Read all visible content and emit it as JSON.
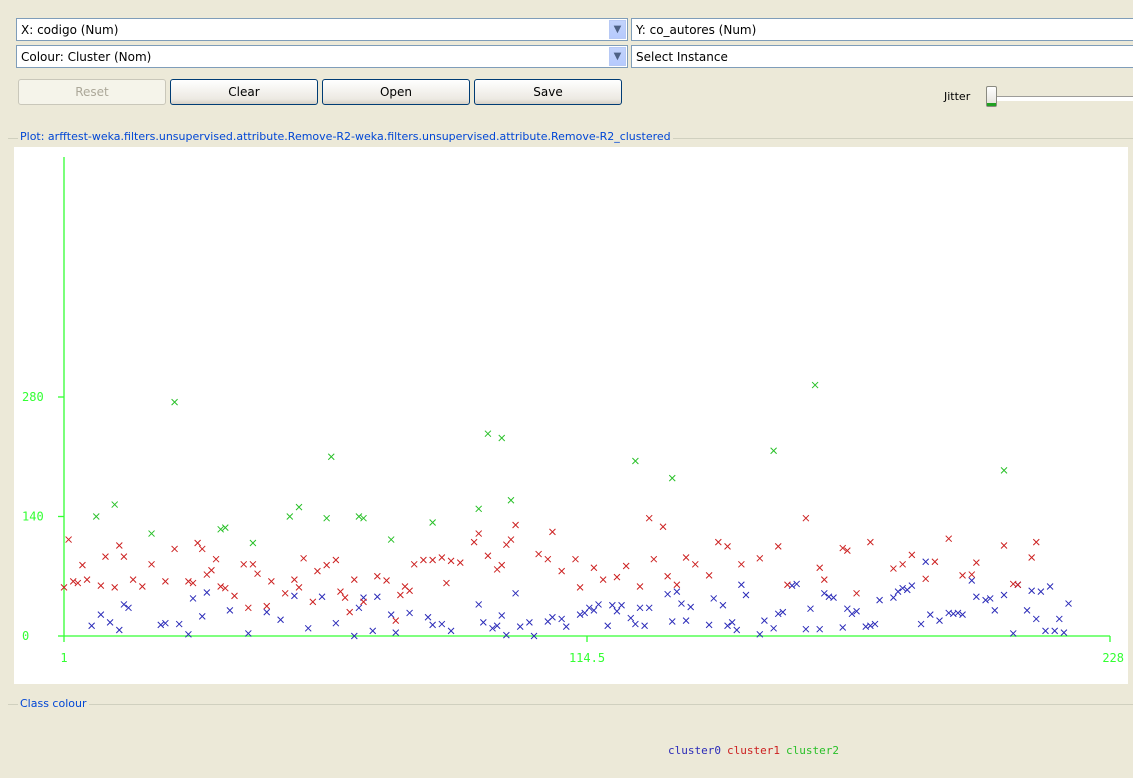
{
  "controls": {
    "x_axis": "X: codigo (Num)",
    "y_axis": "Y: co_autores (Num)",
    "colour": "Colour: Cluster (Nom)",
    "instance": "Select Instance",
    "reset": "Reset",
    "clear": "Clear",
    "open": "Open",
    "save": "Save",
    "jitter": "Jitter",
    "jitter_value": 0
  },
  "plot_title": "Plot: arfftest-weka.filters.unsupervised.attribute.Remove-R2-weka.filters.unsupervised.attribute.Remove-R2_clustered",
  "class_colour_title": "Class colour",
  "colors": {
    "cluster0": "#2b2bb8",
    "cluster1": "#cc2020",
    "cluster2": "#28c028",
    "axis": "#33ff33"
  },
  "chart_data": {
    "type": "scatter",
    "xlim": [
      1,
      228
    ],
    "ylim": [
      0,
      280
    ],
    "x_ticks": [
      "1",
      "114.5",
      "228"
    ],
    "y_ticks": [
      "0",
      "140",
      "280"
    ],
    "marker": "x",
    "legend": [
      "cluster0",
      "cluster1",
      "cluster2"
    ],
    "series": [
      {
        "name": "cluster0",
        "points": [
          [
            7,
            12
          ],
          [
            9,
            25
          ],
          [
            11,
            16
          ],
          [
            13,
            7
          ],
          [
            14,
            37
          ],
          [
            15,
            33
          ],
          [
            22,
            13
          ],
          [
            23,
            15
          ],
          [
            26,
            14
          ],
          [
            28,
            2
          ],
          [
            29,
            44
          ],
          [
            31,
            23
          ],
          [
            32,
            51
          ],
          [
            37,
            30
          ],
          [
            41,
            3
          ],
          [
            45,
            28
          ],
          [
            48,
            19
          ],
          [
            51,
            47
          ],
          [
            54,
            9
          ],
          [
            57,
            46
          ],
          [
            60,
            15
          ],
          [
            64,
            0
          ],
          [
            65,
            33
          ],
          [
            66,
            45
          ],
          [
            68,
            6
          ],
          [
            69,
            46
          ],
          [
            72,
            25
          ],
          [
            73,
            4
          ],
          [
            76,
            27
          ],
          [
            80,
            22
          ],
          [
            81,
            13
          ],
          [
            83,
            14
          ],
          [
            85,
            6
          ],
          [
            91,
            37
          ],
          [
            92,
            16
          ],
          [
            94,
            9
          ],
          [
            95,
            12
          ],
          [
            96,
            24
          ],
          [
            97,
            1
          ],
          [
            99,
            50
          ],
          [
            100,
            11
          ],
          [
            102,
            16
          ],
          [
            103,
            0
          ],
          [
            106,
            17
          ],
          [
            107,
            22
          ],
          [
            109,
            20
          ],
          [
            110,
            11
          ],
          [
            113,
            25
          ],
          [
            114,
            27
          ],
          [
            115,
            33
          ],
          [
            116,
            30
          ],
          [
            117,
            37
          ],
          [
            119,
            12
          ],
          [
            120,
            36
          ],
          [
            121,
            29
          ],
          [
            122,
            36
          ],
          [
            124,
            21
          ],
          [
            125,
            14
          ],
          [
            126,
            33
          ],
          [
            127,
            12
          ],
          [
            128,
            33
          ],
          [
            132,
            49
          ],
          [
            133,
            17
          ],
          [
            134,
            52
          ],
          [
            135,
            38
          ],
          [
            136,
            18
          ],
          [
            137,
            34
          ],
          [
            141,
            13
          ],
          [
            142,
            44
          ],
          [
            144,
            36
          ],
          [
            145,
            12
          ],
          [
            146,
            16
          ],
          [
            147,
            7
          ],
          [
            148,
            60
          ],
          [
            149,
            48
          ],
          [
            152,
            2
          ],
          [
            153,
            18
          ],
          [
            155,
            9
          ],
          [
            156,
            26
          ],
          [
            157,
            28
          ],
          [
            159,
            59
          ],
          [
            160,
            61
          ],
          [
            162,
            8
          ],
          [
            163,
            32
          ],
          [
            165,
            8
          ],
          [
            166,
            50
          ],
          [
            167,
            46
          ],
          [
            168,
            45
          ],
          [
            170,
            10
          ],
          [
            171,
            32
          ],
          [
            172,
            26
          ],
          [
            173,
            29
          ],
          [
            175,
            11
          ],
          [
            176,
            12
          ],
          [
            177,
            14
          ],
          [
            178,
            42
          ],
          [
            181,
            45
          ],
          [
            182,
            52
          ],
          [
            183,
            56
          ],
          [
            184,
            54
          ],
          [
            185,
            59
          ],
          [
            187,
            14
          ],
          [
            188,
            87
          ],
          [
            189,
            25
          ],
          [
            191,
            18
          ],
          [
            193,
            27
          ],
          [
            194,
            26
          ],
          [
            195,
            27
          ],
          [
            196,
            25
          ],
          [
            198,
            65
          ],
          [
            199,
            46
          ],
          [
            201,
            42
          ],
          [
            202,
            44
          ],
          [
            203,
            30
          ],
          [
            205,
            48
          ],
          [
            207,
            3
          ],
          [
            208,
            60
          ],
          [
            210,
            30
          ],
          [
            211,
            53
          ],
          [
            212,
            20
          ],
          [
            213,
            52
          ],
          [
            214,
            6
          ],
          [
            215,
            58
          ],
          [
            216,
            6
          ],
          [
            217,
            20
          ],
          [
            218,
            4
          ],
          [
            219,
            38
          ]
        ]
      },
      {
        "name": "cluster1",
        "points": [
          [
            1,
            57
          ],
          [
            2,
            113
          ],
          [
            3,
            64
          ],
          [
            4,
            62
          ],
          [
            5,
            83
          ],
          [
            6,
            66
          ],
          [
            9,
            59
          ],
          [
            10,
            93
          ],
          [
            12,
            57
          ],
          [
            13,
            106
          ],
          [
            14,
            93
          ],
          [
            16,
            66
          ],
          [
            18,
            58
          ],
          [
            20,
            84
          ],
          [
            23,
            64
          ],
          [
            25,
            102
          ],
          [
            28,
            64
          ],
          [
            29,
            62
          ],
          [
            30,
            109
          ],
          [
            31,
            102
          ],
          [
            32,
            72
          ],
          [
            33,
            77
          ],
          [
            34,
            90
          ],
          [
            35,
            58
          ],
          [
            36,
            56
          ],
          [
            38,
            47
          ],
          [
            40,
            84
          ],
          [
            41,
            33
          ],
          [
            42,
            84
          ],
          [
            43,
            73
          ],
          [
            45,
            35
          ],
          [
            46,
            64
          ],
          [
            49,
            50
          ],
          [
            51,
            66
          ],
          [
            52,
            57
          ],
          [
            53,
            91
          ],
          [
            55,
            40
          ],
          [
            56,
            76
          ],
          [
            58,
            83
          ],
          [
            60,
            89
          ],
          [
            61,
            52
          ],
          [
            62,
            45
          ],
          [
            63,
            28
          ],
          [
            64,
            66
          ],
          [
            66,
            40
          ],
          [
            69,
            70
          ],
          [
            71,
            65
          ],
          [
            73,
            18
          ],
          [
            74,
            48
          ],
          [
            75,
            58
          ],
          [
            76,
            53
          ],
          [
            77,
            84
          ],
          [
            79,
            89
          ],
          [
            81,
            89
          ],
          [
            83,
            92
          ],
          [
            84,
            62
          ],
          [
            85,
            88
          ],
          [
            87,
            86
          ],
          [
            90,
            110
          ],
          [
            91,
            120
          ],
          [
            93,
            94
          ],
          [
            95,
            78
          ],
          [
            96,
            83
          ],
          [
            97,
            107
          ],
          [
            98,
            113
          ],
          [
            99,
            130
          ],
          [
            104,
            96
          ],
          [
            106,
            90
          ],
          [
            107,
            122
          ],
          [
            109,
            76
          ],
          [
            112,
            90
          ],
          [
            113,
            57
          ],
          [
            116,
            80
          ],
          [
            118,
            66
          ],
          [
            121,
            69
          ],
          [
            123,
            82
          ],
          [
            126,
            58
          ],
          [
            128,
            138
          ],
          [
            129,
            90
          ],
          [
            131,
            128
          ],
          [
            132,
            70
          ],
          [
            134,
            60
          ],
          [
            136,
            92
          ],
          [
            138,
            84
          ],
          [
            141,
            71
          ],
          [
            143,
            110
          ],
          [
            145,
            105
          ],
          [
            148,
            84
          ],
          [
            152,
            91
          ],
          [
            156,
            105
          ],
          [
            158,
            60
          ],
          [
            162,
            138
          ],
          [
            165,
            80
          ],
          [
            166,
            66
          ],
          [
            170,
            103
          ],
          [
            171,
            100
          ],
          [
            173,
            50
          ],
          [
            176,
            110
          ],
          [
            181,
            79
          ],
          [
            183,
            84
          ],
          [
            185,
            95
          ],
          [
            188,
            67
          ],
          [
            190,
            87
          ],
          [
            193,
            114
          ],
          [
            196,
            71
          ],
          [
            198,
            72
          ],
          [
            199,
            86
          ],
          [
            205,
            106
          ],
          [
            207,
            61
          ],
          [
            208,
            60
          ],
          [
            211,
            92
          ],
          [
            212,
            110
          ]
        ]
      },
      {
        "name": "cluster2",
        "points": [
          [
            8,
            140
          ],
          [
            12,
            154
          ],
          [
            20,
            120
          ],
          [
            25,
            274
          ],
          [
            35,
            125
          ],
          [
            36,
            127
          ],
          [
            42,
            109
          ],
          [
            50,
            140
          ],
          [
            52,
            151
          ],
          [
            58,
            138
          ],
          [
            59,
            210
          ],
          [
            65,
            140
          ],
          [
            66,
            138
          ],
          [
            72,
            113
          ],
          [
            81,
            133
          ],
          [
            91,
            149
          ],
          [
            93,
            237
          ],
          [
            96,
            232
          ],
          [
            98,
            159
          ],
          [
            125,
            205
          ],
          [
            133,
            185
          ],
          [
            155,
            217
          ],
          [
            164,
            294
          ],
          [
            205,
            194
          ]
        ]
      }
    ]
  }
}
